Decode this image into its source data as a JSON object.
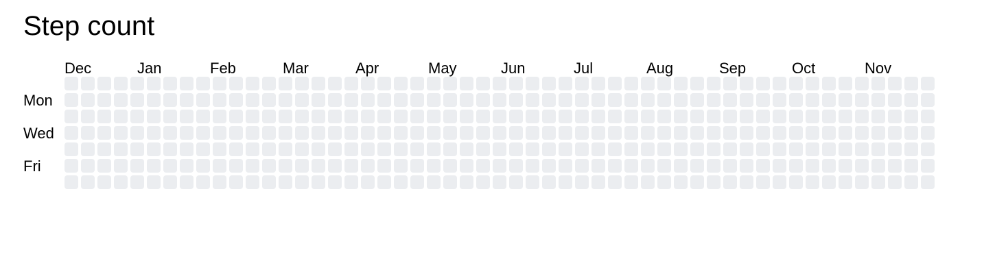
{
  "title": "Step count",
  "chart_data": {
    "type": "heatmap",
    "title": "Step count",
    "x_labels": [
      "Dec",
      "Jan",
      "Feb",
      "Mar",
      "Apr",
      "May",
      "Jun",
      "Jul",
      "Aug",
      "Sep",
      "Oct",
      "Nov"
    ],
    "y_labels": [
      "Mon",
      "Wed",
      "Fri"
    ],
    "weeks": 53,
    "days_per_week": 7,
    "empty_cell_color": "#ebedf0",
    "values": []
  }
}
